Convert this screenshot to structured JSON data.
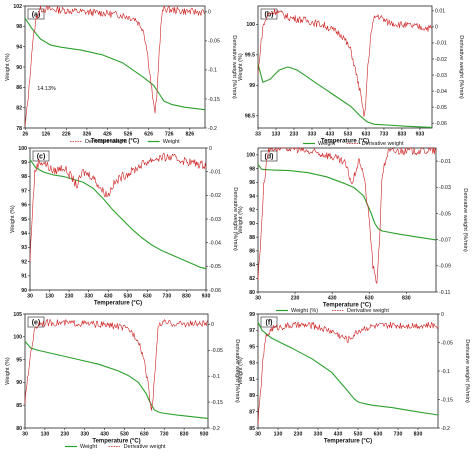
{
  "colors": {
    "weight": "#2ca02c",
    "derivative": "#cc1f1f",
    "axis": "#222222",
    "background": "#ffffff"
  },
  "chart_data": [
    {
      "panel": "(a)",
      "type": "line",
      "xlabel": "Temperature (°C)",
      "ylabel_left": "Weight (%)",
      "ylabel_right": "Derivative weight (%/min)",
      "xlim": [
        25,
        900
      ],
      "xticks": [
        26,
        126,
        226,
        326,
        426,
        526,
        626,
        726,
        826
      ],
      "ylim_left": [
        78,
        102
      ],
      "yticks_left": [
        78,
        82,
        86,
        90,
        94,
        98,
        102
      ],
      "ylim_right": [
        -0.2,
        0.01
      ],
      "yticks_right": [
        0,
        -0.05,
        -0.1,
        -0.15,
        -0.2
      ],
      "annotation": "14.13%",
      "legend": [],
      "series": [
        {
          "name": "Weight",
          "axis": "left",
          "x": [
            25,
            60,
            100,
            150,
            200,
            300,
            400,
            500,
            600,
            650,
            680,
            700,
            740,
            800,
            900
          ],
          "y": [
            99.6,
            97.5,
            95.5,
            94.3,
            93.9,
            93.3,
            92.4,
            90.8,
            88.0,
            86.4,
            84.6,
            83.3,
            82.6,
            82.1,
            81.6
          ]
        },
        {
          "name": "Derivative weight",
          "axis": "right",
          "x": [
            25,
            45,
            60,
            80,
            100,
            150,
            200,
            300,
            400,
            500,
            560,
            600,
            620,
            640,
            655,
            665,
            675,
            690,
            700,
            720,
            800,
            900
          ],
          "y": [
            -0.2,
            -0.13,
            -0.06,
            -0.01,
            0.005,
            0.004,
            0.003,
            0.0,
            -0.002,
            -0.006,
            -0.012,
            -0.03,
            -0.07,
            -0.13,
            -0.175,
            -0.155,
            -0.08,
            -0.005,
            0.006,
            0.004,
            0.001,
            -0.001
          ]
        }
      ]
    },
    {
      "panel": "(b)",
      "type": "line",
      "xlabel": "Temperature (°C)",
      "ylabel_left": "Weight (%)",
      "ylabel_right": "Derivative weight (%/min)",
      "xlim": [
        33,
        1000
      ],
      "xticks": [
        33,
        133,
        233,
        333,
        433,
        533,
        633,
        733,
        833,
        933
      ],
      "ylim_left": [
        98.3,
        100.3
      ],
      "yticks_left": [
        98.5,
        99,
        99.5,
        100
      ],
      "ylim_right": [
        -0.063,
        0.013
      ],
      "yticks_right": [
        0.01,
        0,
        -0.01,
        -0.02,
        -0.03,
        -0.04,
        -0.05,
        -0.06
      ],
      "legend": [],
      "series": [
        {
          "name": "Weight",
          "axis": "left",
          "x": [
            33,
            60,
            100,
            150,
            200,
            250,
            300,
            350,
            400,
            450,
            500,
            550,
            600,
            640,
            680,
            750,
            850,
            1000
          ],
          "y": [
            99.35,
            99.05,
            99.1,
            99.25,
            99.3,
            99.25,
            99.15,
            99.05,
            98.95,
            98.85,
            98.75,
            98.65,
            98.5,
            98.4,
            98.36,
            98.35,
            98.33,
            98.31
          ]
        },
        {
          "name": "Derivative weight",
          "axis": "right",
          "x": [
            33,
            45,
            60,
            90,
            133,
            200,
            300,
            400,
            500,
            550,
            600,
            620,
            630,
            640,
            660,
            680,
            700,
            750,
            850,
            1000
          ],
          "y": [
            -0.03,
            -0.015,
            0.0,
            0.008,
            0.01,
            0.006,
            0.004,
            0.001,
            -0.005,
            -0.015,
            -0.04,
            -0.055,
            -0.052,
            -0.03,
            -0.005,
            0.006,
            0.007,
            0.003,
            0.001,
            -0.001
          ]
        }
      ]
    },
    {
      "panel": "(c)",
      "type": "line",
      "xlabel": "Temperature (°C)",
      "ylabel_left": "Weight (%)",
      "ylabel_right": "Derivative weight (%/min)",
      "xlim": [
        30,
        930
      ],
      "xticks": [
        30,
        130,
        230,
        330,
        430,
        530,
        630,
        730,
        830,
        930
      ],
      "ylim_left": [
        90,
        100
      ],
      "yticks_left": [
        90,
        91,
        92,
        93,
        94,
        95,
        96,
        97,
        98,
        99,
        100
      ],
      "ylim_right": [
        -0.06,
        0.0
      ],
      "yticks_right": [
        0,
        -0.01,
        -0.02,
        -0.03,
        -0.04,
        -0.05,
        -0.06
      ],
      "legend": [
        "Derivative weight",
        "Weight"
      ],
      "series": [
        {
          "name": "Weight",
          "axis": "left",
          "x": [
            30,
            60,
            100,
            150,
            200,
            300,
            350,
            400,
            450,
            500,
            550,
            600,
            650,
            700,
            800,
            900,
            930
          ],
          "y": [
            99.2,
            98.6,
            98.3,
            98.1,
            98.0,
            97.6,
            97.2,
            96.5,
            95.7,
            95.0,
            94.3,
            93.7,
            93.2,
            92.8,
            92.2,
            91.6,
            91.5
          ]
        },
        {
          "name": "Derivative weight",
          "axis": "right",
          "x": [
            30,
            40,
            55,
            75,
            100,
            150,
            200,
            240,
            270,
            300,
            350,
            400,
            430,
            450,
            500,
            550,
            600,
            650,
            700,
            750,
            800,
            850,
            900,
            930
          ],
          "y": [
            -0.048,
            -0.03,
            -0.01,
            -0.006,
            -0.006,
            -0.01,
            -0.008,
            -0.012,
            -0.016,
            -0.01,
            -0.012,
            -0.018,
            -0.02,
            -0.016,
            -0.012,
            -0.01,
            -0.007,
            -0.005,
            -0.004,
            -0.004,
            -0.005,
            -0.006,
            -0.007,
            -0.007
          ]
        }
      ]
    },
    {
      "panel": "(d)",
      "type": "line",
      "xlabel": "Temperature (°C)",
      "ylabel_left": "Weight (%)",
      "ylabel_right": "Derivative weight (%/min)",
      "xlim": [
        30,
        990
      ],
      "xticks": [
        30,
        230,
        430,
        630,
        830
      ],
      "ylim_left": [
        80,
        101
      ],
      "yticks_left": [
        80,
        82,
        84,
        86,
        88,
        90,
        92,
        94,
        96,
        98,
        100
      ],
      "ylim_right": [
        -0.11,
        0.0
      ],
      "yticks_right": [
        -0.01,
        -0.03,
        -0.05,
        -0.07,
        -0.09,
        -0.11
      ],
      "legend": [
        "Weight",
        "Derivative weight"
      ],
      "series": [
        {
          "name": "Weight",
          "axis": "left",
          "x": [
            30,
            50,
            100,
            200,
            300,
            400,
            500,
            550,
            600,
            640,
            660,
            680,
            700,
            800,
            990
          ],
          "y": [
            98.6,
            97.9,
            97.8,
            97.7,
            97.4,
            96.8,
            95.8,
            95.2,
            94.0,
            91.5,
            90.0,
            89.2,
            88.9,
            88.4,
            87.6
          ]
        },
        {
          "name": "Derivative weight",
          "axis": "right",
          "x": [
            30,
            45,
            60,
            80,
            100,
            150,
            230,
            300,
            400,
            450,
            500,
            540,
            560,
            580,
            600,
            630,
            650,
            670,
            685,
            700,
            730,
            800,
            990
          ],
          "y": [
            -0.1,
            -0.07,
            -0.03,
            -0.005,
            0.0,
            0.0,
            0.0,
            -0.003,
            -0.005,
            -0.008,
            -0.012,
            -0.028,
            -0.015,
            -0.01,
            -0.02,
            -0.055,
            -0.09,
            -0.105,
            -0.07,
            -0.02,
            -0.003,
            -0.002,
            -0.002
          ]
        }
      ]
    },
    {
      "panel": "(e)",
      "type": "line",
      "xlabel": "Temperature (°C)",
      "ylabel_left": "Weight (%)",
      "ylabel_right": "Derivative weight (%/min)",
      "xlim": [
        30,
        950
      ],
      "xticks": [
        30,
        130,
        230,
        330,
        430,
        530,
        630,
        730,
        830,
        930
      ],
      "ylim_left": [
        80,
        105
      ],
      "yticks_left": [
        80,
        85,
        90,
        95,
        100,
        105
      ],
      "ylim_right": [
        -0.2,
        0.02
      ],
      "yticks_right": [
        0,
        -0.05,
        -0.1,
        -0.15,
        -0.2
      ],
      "legend": [
        "Weight",
        "Derivative weight"
      ],
      "series": [
        {
          "name": "Weight",
          "axis": "left",
          "x": [
            30,
            60,
            100,
            200,
            300,
            400,
            500,
            550,
            600,
            640,
            660,
            680,
            700,
            720,
            800,
            950
          ],
          "y": [
            99.0,
            97.5,
            97.0,
            96.0,
            95.0,
            94.0,
            92.5,
            91.5,
            90.0,
            87.5,
            85.5,
            84.0,
            83.5,
            83.3,
            82.8,
            82.1
          ]
        },
        {
          "name": "Derivative weight",
          "axis": "right",
          "x": [
            30,
            45,
            60,
            80,
            100,
            200,
            300,
            400,
            500,
            560,
            600,
            630,
            650,
            665,
            675,
            690,
            700,
            720,
            800,
            950
          ],
          "y": [
            -0.15,
            -0.1,
            -0.05,
            -0.01,
            0.003,
            0.003,
            0.002,
            0.0,
            -0.004,
            -0.012,
            -0.03,
            -0.07,
            -0.12,
            -0.165,
            -0.14,
            -0.05,
            -0.005,
            0.003,
            0.001,
            0.001
          ]
        }
      ]
    },
    {
      "panel": "(f)",
      "type": "line",
      "xlabel": "Temperature (°C)",
      "ylabel_left": "Weight (%)",
      "ylabel_right": "Derivative weight (%/min)",
      "xlim": [
        30,
        930
      ],
      "xticks": [
        30,
        130,
        230,
        330,
        430,
        530,
        630,
        730,
        830
      ],
      "ylim_left": [
        85,
        99
      ],
      "yticks_left": [
        85,
        87,
        89,
        91,
        93,
        95,
        97,
        99
      ],
      "ylim_right": [
        -0.2,
        0.0
      ],
      "yticks_right": [
        0,
        -0.05,
        -0.1,
        -0.15,
        -0.2
      ],
      "legend": [
        "Weight (%)",
        "Derivative weight"
      ],
      "series": [
        {
          "name": "Weight (%)",
          "axis": "left",
          "x": [
            30,
            50,
            100,
            200,
            300,
            400,
            480,
            510,
            530,
            560,
            600,
            700,
            800,
            930
          ],
          "y": [
            98.0,
            97.0,
            96.0,
            94.8,
            93.5,
            91.8,
            89.5,
            88.6,
            88.2,
            88.0,
            87.8,
            87.5,
            87.1,
            86.6
          ]
        },
        {
          "name": "Derivative weight",
          "axis": "right",
          "x": [
            30,
            40,
            55,
            70,
            100,
            150,
            200,
            300,
            400,
            450,
            480,
            500,
            530,
            560,
            600,
            700,
            800,
            930
          ],
          "y": [
            -0.19,
            -0.15,
            -0.08,
            -0.04,
            -0.025,
            -0.022,
            -0.02,
            -0.02,
            -0.03,
            -0.04,
            -0.045,
            -0.04,
            -0.03,
            -0.025,
            -0.022,
            -0.02,
            -0.02,
            -0.02
          ]
        }
      ]
    }
  ]
}
